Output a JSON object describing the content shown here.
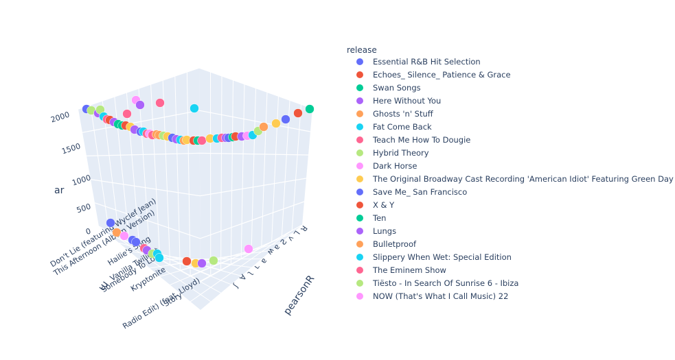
{
  "chart_data": {
    "type": "scatter3d",
    "legend_title": "release",
    "legend_placement": "right",
    "grid": true,
    "axes": {
      "z": {
        "title": "ar",
        "range": [
          0,
          2100
        ],
        "ticks": [
          "0",
          "500",
          "1000",
          "1500",
          "2000"
        ]
      },
      "x": {
        "title": "pearsonR",
        "tick_labels": [
          "ꓤ",
          "Ꞁ",
          "ʌ",
          "Ƨ",
          "ɐ",
          "ʍ",
          "ɐ",
          "ʟ",
          "ʅ",
          "Ɐ",
          "ʃ"
        ]
      },
      "y": {
        "title": "ɯ",
        "tick_labels": [
          "Don't Lie (featuring Wyclef Jean)",
          "This Afternoon (Album Version)",
          "Hailie's Song",
          "Vanilla Twilight",
          "Somebody To Love",
          "Kryptonite",
          "Radio Edit) (feat. Lloyd)",
          "Story"
        ]
      }
    },
    "series": [
      {
        "name": "Essential R&B Hit Selection",
        "color": "#636efa"
      },
      {
        "name": "Echoes_ Silence_ Patience & Grace",
        "color": "#EF553B"
      },
      {
        "name": "Swan Songs",
        "color": "#00cc96"
      },
      {
        "name": "Here Without You",
        "color": "#ab63fa"
      },
      {
        "name": "Ghosts 'n' Stuff",
        "color": "#FFA15A"
      },
      {
        "name": "Fat Come Back",
        "color": "#19d3f3"
      },
      {
        "name": "Teach Me How To Dougie",
        "color": "#FF6692"
      },
      {
        "name": "Hybrid Theory",
        "color": "#B6E880"
      },
      {
        "name": "Dark Horse",
        "color": "#FF97FF"
      },
      {
        "name": "The Original Broadway Cast Recording 'American Idiot' Featuring Green Day",
        "color": "#FECB52"
      },
      {
        "name": "Save Me_ San Francisco",
        "color": "#636efa"
      },
      {
        "name": "X & Y",
        "color": "#EF553B"
      },
      {
        "name": "Ten",
        "color": "#00cc96"
      },
      {
        "name": "Lungs",
        "color": "#ab63fa"
      },
      {
        "name": "Bulletproof",
        "color": "#FFA15A"
      },
      {
        "name": "Slippery When Wet: Special Edition",
        "color": "#19d3f3"
      },
      {
        "name": "The Eminem Show",
        "color": "#FF6692"
      },
      {
        "name": "Tiësto - In Search Of Sunrise 6 - Ibiza",
        "color": "#B6E880"
      },
      {
        "name": "NOW (That's What I Call Music) 22",
        "color": "#FF97FF"
      }
    ]
  }
}
